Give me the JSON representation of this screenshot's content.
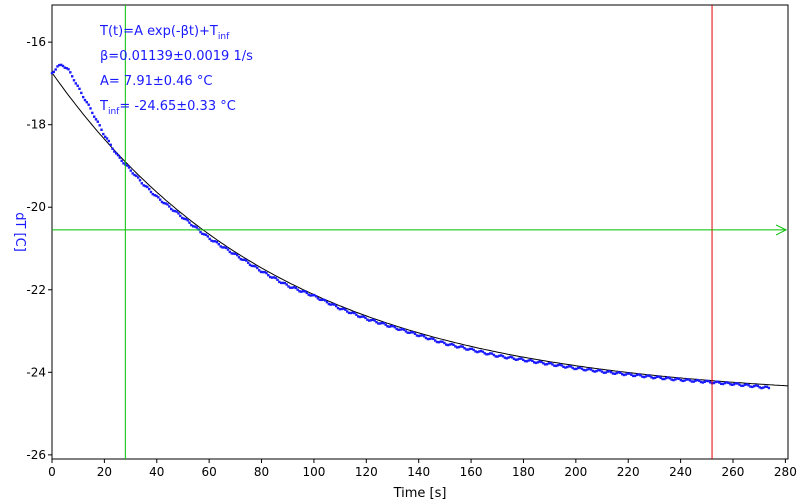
{
  "chart_data": {
    "type": "scatter",
    "xlabel": "Time [s]",
    "ylabel": "dT [C]",
    "xlim": [
      0,
      281
    ],
    "ylim": [
      -26.1,
      -15.1
    ],
    "xticks": [
      0,
      20,
      40,
      60,
      80,
      100,
      120,
      140,
      160,
      180,
      200,
      220,
      240,
      260,
      280
    ],
    "yticks": [
      -16,
      -18,
      -20,
      -22,
      -24,
      -26
    ],
    "annotations": [
      {
        "id": "formula",
        "text": "T(t)=A exp(-βt)+T",
        "sub": "inf"
      },
      {
        "id": "beta",
        "text": "β=0.01139±0.0019 1/s",
        "sub": ""
      },
      {
        "id": "amp",
        "text": "A= 7.91±0.46 °C",
        "sub": ""
      },
      {
        "id": "tinf",
        "text": "T",
        "sub": "inf",
        "tail": "= -24.65±0.33 °C"
      }
    ],
    "fit": {
      "A": 7.91,
      "beta": 0.01139,
      "Tinf": -24.65,
      "x_range": [
        0,
        281
      ]
    },
    "markers": {
      "vertical_green_x": 28,
      "vertical_red_x": 252,
      "horizontal_green_y": -20.55
    },
    "series": [
      {
        "x": [
          0,
          2,
          4,
          6,
          8,
          10,
          15,
          20,
          25,
          30,
          35,
          40,
          45,
          50,
          55,
          60,
          70,
          80,
          90,
          100,
          110,
          120,
          130,
          140,
          150,
          160,
          170,
          180,
          190,
          200,
          210,
          220,
          230,
          240,
          250,
          260,
          270,
          274
        ],
        "y": [
          -16.75,
          -16.6,
          -16.55,
          -16.65,
          -16.85,
          -17.1,
          -17.65,
          -18.25,
          -18.75,
          -19.1,
          -19.45,
          -19.75,
          -20.0,
          -20.25,
          -20.5,
          -20.75,
          -21.15,
          -21.55,
          -21.9,
          -22.15,
          -22.45,
          -22.7,
          -22.9,
          -23.1,
          -23.3,
          -23.45,
          -23.6,
          -23.7,
          -23.8,
          -23.9,
          -23.98,
          -24.05,
          -24.12,
          -24.18,
          -24.23,
          -24.28,
          -24.35,
          -24.38
        ]
      }
    ],
    "colors": {
      "points": "#1a1aff",
      "fit": "#000000",
      "green_line": "#00c000",
      "red_line": "#e00000",
      "axis_text": "#1a1aff"
    }
  }
}
